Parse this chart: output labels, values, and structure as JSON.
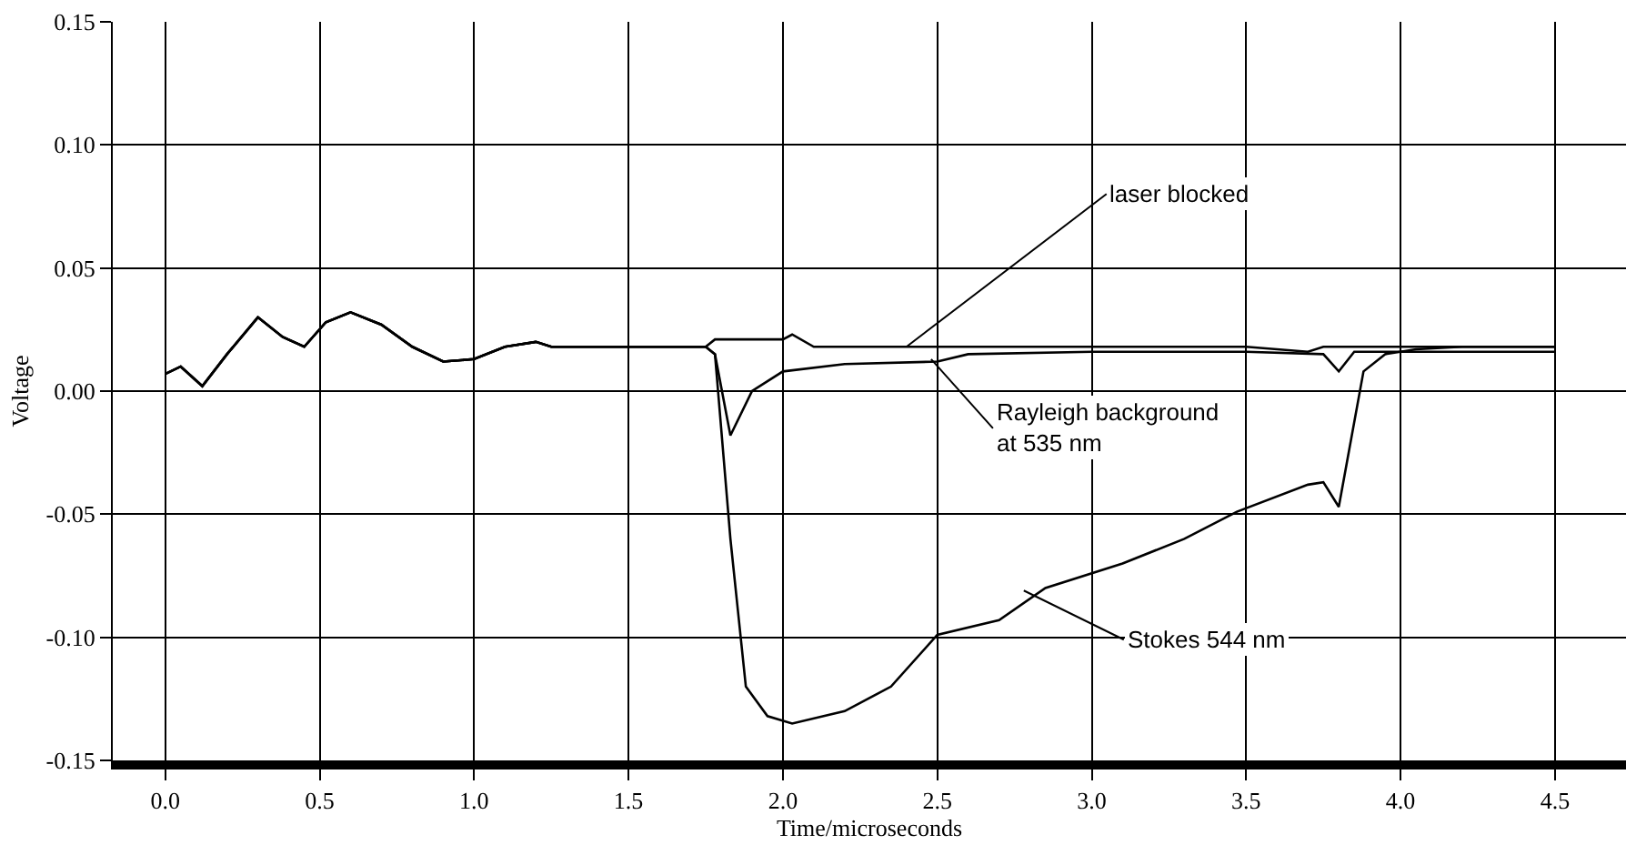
{
  "chart_data": {
    "type": "line",
    "xlabel": "Time/microseconds",
    "ylabel": "Voltage",
    "xlim": [
      -0.17,
      4.73
    ],
    "ylim": [
      -0.15,
      0.15
    ],
    "xticks": [
      {
        "value": 0,
        "label": "0.0"
      },
      {
        "value": 0.5,
        "label": "0.5"
      },
      {
        "value": 1,
        "label": "1.0"
      },
      {
        "value": 1.5,
        "label": "1.5"
      },
      {
        "value": 2,
        "label": "2.0"
      },
      {
        "value": 2.5,
        "label": "2.5"
      },
      {
        "value": 3,
        "label": "3.0"
      },
      {
        "value": 3.5,
        "label": "3.5"
      },
      {
        "value": 4,
        "label": "4.0"
      },
      {
        "value": 4.5,
        "label": "4.5"
      }
    ],
    "yticks": [
      {
        "value": -0.15,
        "label": "-0.15"
      },
      {
        "value": -0.1,
        "label": "-0.10"
      },
      {
        "value": -0.05,
        "label": "-0.05"
      },
      {
        "value": 0,
        "label": "0.00"
      },
      {
        "value": 0.05,
        "label": "0.05"
      },
      {
        "value": 0.1,
        "label": "0.10"
      },
      {
        "value": 0.15,
        "label": "0.15"
      }
    ],
    "grid": true,
    "marker": "none",
    "line_style": "solid",
    "series": [
      {
        "color": "#000000",
        "x": [
          0,
          0.05,
          0.12,
          0.2,
          0.3,
          0.38,
          0.45,
          0.52,
          0.6,
          0.7,
          0.8,
          0.9,
          1.0,
          1.1,
          1.2,
          1.25,
          1.5,
          1.75,
          1.78,
          2.0,
          2.03,
          2.1,
          2.5,
          3.0,
          3.5,
          3.7,
          3.75,
          3.8,
          4.0,
          4.5
        ],
        "values": [
          0.007,
          0.01,
          0.002,
          0.015,
          0.03,
          0.022,
          0.018,
          0.028,
          0.032,
          0.027,
          0.018,
          0.012,
          0.013,
          0.018,
          0.02,
          0.018,
          0.018,
          0.018,
          0.021,
          0.021,
          0.023,
          0.018,
          0.018,
          0.018,
          0.018,
          0.016,
          0.018,
          0.018,
          0.018,
          0.018
        ]
      },
      {
        "color": "#000000",
        "x": [
          0,
          0.05,
          0.12,
          0.2,
          0.3,
          0.38,
          0.45,
          0.52,
          0.6,
          0.7,
          0.8,
          0.9,
          1.0,
          1.1,
          1.2,
          1.25,
          1.5,
          1.75,
          1.78,
          1.83,
          1.9,
          2.0,
          2.2,
          2.5,
          2.6,
          3.0,
          3.5,
          3.75,
          3.8,
          3.85,
          4.0,
          4.5
        ],
        "values": [
          0.007,
          0.01,
          0.002,
          0.015,
          0.03,
          0.022,
          0.018,
          0.028,
          0.032,
          0.027,
          0.018,
          0.012,
          0.013,
          0.018,
          0.02,
          0.018,
          0.018,
          0.018,
          0.015,
          -0.018,
          0.0,
          0.008,
          0.011,
          0.012,
          0.015,
          0.016,
          0.016,
          0.015,
          0.008,
          0.016,
          0.016,
          0.016
        ]
      },
      {
        "color": "#000000",
        "x": [
          0,
          0.05,
          0.12,
          0.2,
          0.3,
          0.38,
          0.45,
          0.52,
          0.6,
          0.7,
          0.8,
          0.9,
          1.0,
          1.1,
          1.2,
          1.25,
          1.5,
          1.75,
          1.78,
          1.83,
          1.88,
          1.95,
          2.03,
          2.2,
          2.35,
          2.5,
          2.7,
          2.85,
          3.1,
          3.3,
          3.47,
          3.7,
          3.75,
          3.8,
          3.88,
          3.95,
          4.05,
          4.2,
          4.5
        ],
        "values": [
          0.007,
          0.01,
          0.002,
          0.015,
          0.03,
          0.022,
          0.018,
          0.028,
          0.032,
          0.027,
          0.018,
          0.012,
          0.013,
          0.018,
          0.02,
          0.018,
          0.018,
          0.018,
          0.015,
          -0.06,
          -0.12,
          -0.132,
          -0.135,
          -0.13,
          -0.12,
          -0.099,
          -0.093,
          -0.08,
          -0.07,
          -0.06,
          -0.049,
          -0.038,
          -0.037,
          -0.047,
          0.008,
          0.015,
          0.017,
          0.018,
          0.018
        ]
      }
    ],
    "annotations": [
      {
        "text": "laser blocked",
        "x": 2.4,
        "y": 0.018
      },
      {
        "text": "Rayleigh background\nat 535 nm",
        "x": 2.48,
        "y": 0.013
      },
      {
        "text": "Stokes 544 nm",
        "x": 2.78,
        "y": -0.081
      }
    ]
  }
}
